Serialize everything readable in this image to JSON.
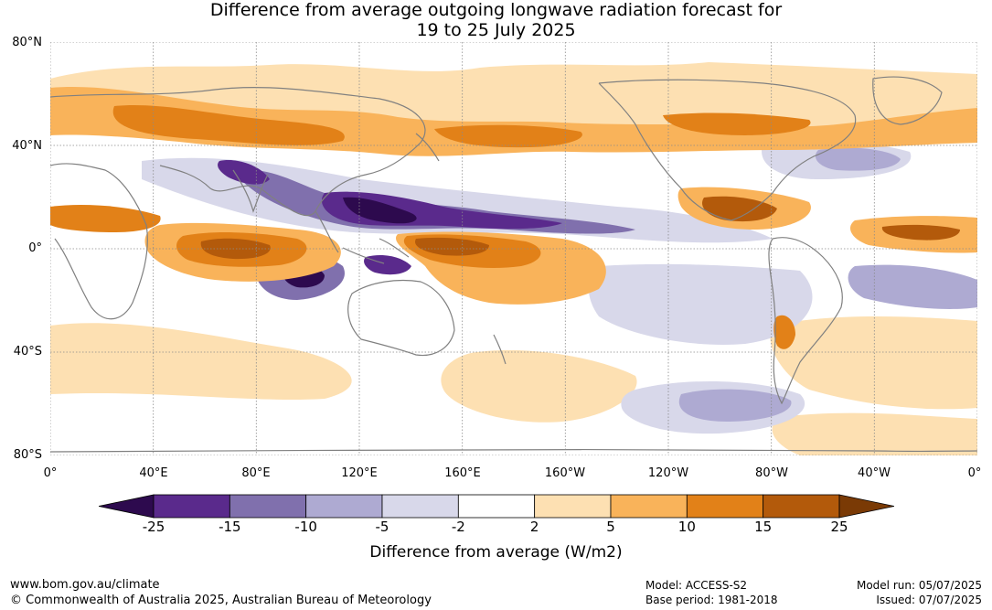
{
  "title": {
    "line1": "Difference from average outgoing longwave radiation forecast for",
    "line2": "19 to 25 July 2025"
  },
  "lat_labels": [
    "80°N",
    "40°N",
    "0°",
    "40°S",
    "80°S"
  ],
  "lon_labels": [
    "0°",
    "40°E",
    "80°E",
    "120°E",
    "160°E",
    "160°W",
    "120°W",
    "80°W",
    "40°W",
    "0°"
  ],
  "colorbar": {
    "ticks": [
      "-25",
      "-15",
      "-10",
      "-5",
      "-2",
      "2",
      "5",
      "10",
      "15",
      "25"
    ],
    "colors": [
      "#2d0a4e",
      "#5a2a8c",
      "#8070ad",
      "#aeaad2",
      "#d8d8ea",
      "#ffffff",
      "#fde0b2",
      "#f9b35a",
      "#e28118",
      "#b35a0b",
      "#7a3a05"
    ],
    "label": "Difference from average (W/m2)"
  },
  "footer": {
    "url": "www.bom.gov.au/climate",
    "copyright": "© Commonwealth of Australia 2025, Australian Bureau of Meteorology",
    "model": "Model: ACCESS-S2",
    "base_period": "Base period: 1981-2018",
    "model_run": "Model run: 05/07/2025",
    "issued": "Issued: 07/07/2025"
  }
}
